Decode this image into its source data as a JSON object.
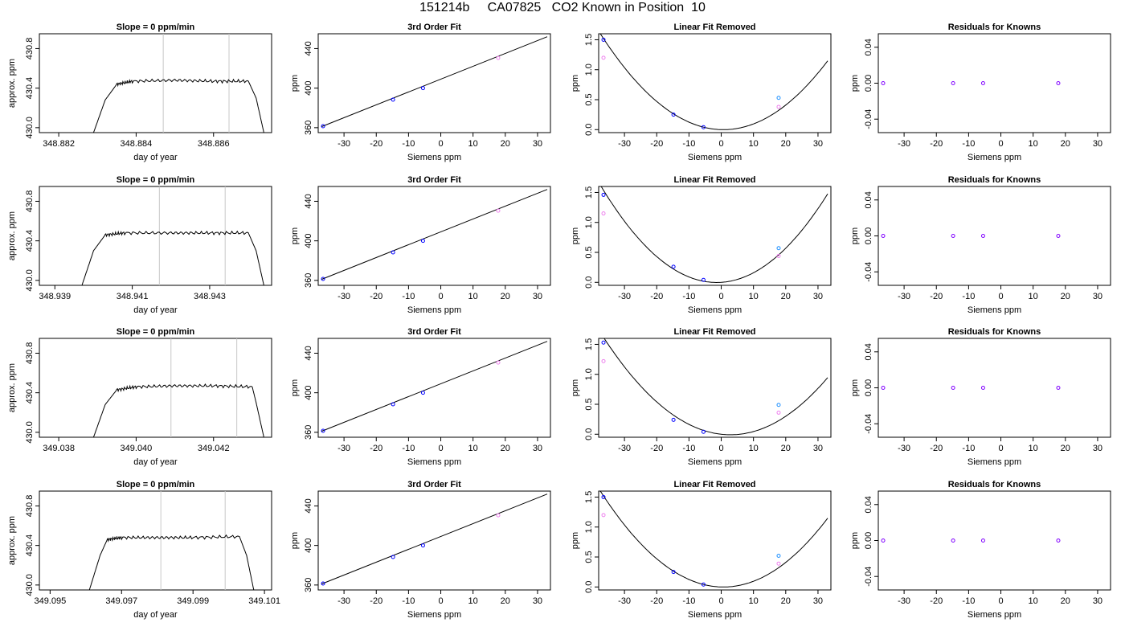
{
  "title": "151214b     CA07825   CO2 Known in Position  10",
  "colors": {
    "trace": "#000000",
    "window_line": "#c8c8c8",
    "points_a": "#0000ff",
    "points_b": "#ee82ee",
    "points_c": "#1e90ff",
    "points_d": "#8000ff",
    "fit": "#000000"
  },
  "chart_data": [
    {
      "type": "line",
      "title": "Slope =  0  ppm/min",
      "xlabel": "day of year",
      "ylabel": "approx. ppm",
      "xlim": [
        348.8815,
        348.8875
      ],
      "ylim": [
        429.95,
        430.95
      ],
      "xticks": [
        "348.882",
        "348.884",
        "348.886"
      ],
      "yticks": [
        "430.0",
        "430.4",
        "430.8"
      ],
      "windows": [
        348.8847,
        348.8864
      ],
      "series": [
        {
          "x": [
            348.8829,
            348.8832,
            348.8835,
            348.8839,
            348.885,
            348.886,
            348.8869,
            348.8871,
            348.8873
          ],
          "y": [
            429.95,
            430.28,
            430.44,
            430.47,
            430.48,
            430.47,
            430.47,
            430.3,
            429.95
          ]
        }
      ]
    },
    {
      "type": "scatter",
      "title": "3rd Order Fit",
      "xlabel": "Siemens ppm",
      "ylabel": "ppm",
      "xlim": [
        -38,
        34
      ],
      "ylim": [
        355,
        455
      ],
      "xticks": [
        "-30",
        "-20",
        "-10",
        "0",
        "10",
        "20",
        "30"
      ],
      "yticks": [
        "360",
        "400",
        "440"
      ],
      "fit": [
        [
          -37,
          361
        ],
        [
          33,
          452
        ]
      ],
      "points": [
        {
          "x": -36.5,
          "y": 361.5
        },
        {
          "x": -14.8,
          "y": 388.3
        },
        {
          "x": -5.5,
          "y": 400
        },
        {
          "x": 17.8,
          "y": 430.5
        }
      ]
    },
    {
      "type": "scatter",
      "title": "Linear Fit Removed",
      "xlabel": "Siemens ppm",
      "ylabel": "ppm",
      "xlim": [
        -38,
        34
      ],
      "ylim": [
        -0.05,
        1.6
      ],
      "xticks": [
        "-30",
        "-20",
        "-10",
        "0",
        "10",
        "20",
        "30"
      ],
      "yticks": [
        "0.0",
        "0.5",
        "1.0",
        "1.5"
      ],
      "curve": {
        "a": 0.0011,
        "b": -0.0015,
        "c": 0.0
      },
      "points": [
        {
          "x": -36.5,
          "y": 1.5
        },
        {
          "x": -36.5,
          "y": 1.2
        },
        {
          "x": -14.8,
          "y": 0.25
        },
        {
          "x": -5.5,
          "y": 0.04
        },
        {
          "x": 17.8,
          "y": 0.53
        },
        {
          "x": 17.8,
          "y": 0.38
        }
      ]
    },
    {
      "type": "scatter",
      "title": "Residuals for Knowns",
      "xlabel": "Siemens ppm",
      "ylabel": "ppm",
      "xlim": [
        -38,
        34
      ],
      "ylim": [
        -0.055,
        0.055
      ],
      "xticks": [
        "-30",
        "-20",
        "-10",
        "0",
        "10",
        "20",
        "30"
      ],
      "yticks": [
        "-0.04",
        "0.00",
        "0.04"
      ],
      "points": [
        {
          "x": -36.5,
          "y": 0
        },
        {
          "x": -14.8,
          "y": 0
        },
        {
          "x": -5.5,
          "y": 0
        },
        {
          "x": 17.8,
          "y": 0
        }
      ]
    },
    {
      "type": "line",
      "title": "Slope =  0  ppm/min",
      "xlabel": "day of year",
      "ylabel": "approx. ppm",
      "xlim": [
        348.9386,
        348.9446
      ],
      "ylim": [
        429.95,
        430.95
      ],
      "xticks": [
        "348.939",
        "348.941",
        "348.943"
      ],
      "yticks": [
        "430.0",
        "430.4",
        "430.8"
      ],
      "windows": [
        348.9417,
        348.9434
      ],
      "series": [
        {
          "x": [
            348.9397,
            348.94,
            348.9403,
            348.9408,
            348.942,
            348.943,
            348.944,
            348.9442,
            348.9444
          ],
          "y": [
            429.95,
            430.3,
            430.46,
            430.48,
            430.48,
            430.48,
            430.48,
            430.3,
            429.95
          ]
        }
      ]
    },
    {
      "type": "scatter",
      "title": "3rd Order Fit",
      "xlabel": "Siemens ppm",
      "ylabel": "ppm",
      "xlim": [
        -38,
        34
      ],
      "ylim": [
        355,
        455
      ],
      "xticks": [
        "-30",
        "-20",
        "-10",
        "0",
        "10",
        "20",
        "30"
      ],
      "yticks": [
        "360",
        "400",
        "440"
      ],
      "fit": [
        [
          -37,
          361
        ],
        [
          33,
          452
        ]
      ],
      "points": [
        {
          "x": -36.5,
          "y": 361.5
        },
        {
          "x": -14.8,
          "y": 388.3
        },
        {
          "x": -5.5,
          "y": 400
        },
        {
          "x": 17.8,
          "y": 430.5
        }
      ]
    },
    {
      "type": "scatter",
      "title": "Linear Fit Removed",
      "xlabel": "Siemens ppm",
      "ylabel": "ppm",
      "xlim": [
        -38,
        34
      ],
      "ylim": [
        -0.05,
        1.6
      ],
      "xticks": [
        "-30",
        "-20",
        "-10",
        "0",
        "10",
        "20",
        "30"
      ],
      "yticks": [
        "0.0",
        "0.5",
        "1.0",
        "1.5"
      ],
      "curve": {
        "a": 0.00125,
        "b": 0.0035,
        "c": 0.0
      },
      "points": [
        {
          "x": -36.5,
          "y": 1.46
        },
        {
          "x": -36.5,
          "y": 1.15
        },
        {
          "x": -14.8,
          "y": 0.26
        },
        {
          "x": -5.5,
          "y": 0.04
        },
        {
          "x": 17.8,
          "y": 0.57
        },
        {
          "x": 17.8,
          "y": 0.44
        }
      ]
    },
    {
      "type": "scatter",
      "title": "Residuals for Knowns",
      "xlabel": "Siemens ppm",
      "ylabel": "ppm",
      "xlim": [
        -38,
        34
      ],
      "ylim": [
        -0.055,
        0.055
      ],
      "xticks": [
        "-30",
        "-20",
        "-10",
        "0",
        "10",
        "20",
        "30"
      ],
      "yticks": [
        "-0.04",
        "0.00",
        "0.04"
      ],
      "points": [
        {
          "x": -36.5,
          "y": 0
        },
        {
          "x": -14.8,
          "y": 0
        },
        {
          "x": -5.5,
          "y": 0
        },
        {
          "x": 17.8,
          "y": 0
        }
      ]
    },
    {
      "type": "line",
      "title": "Slope =  0  ppm/min",
      "xlabel": "day of year",
      "ylabel": "approx. ppm",
      "xlim": [
        349.0375,
        349.0435
      ],
      "ylim": [
        429.95,
        430.95
      ],
      "xticks": [
        "349.038",
        "349.040",
        "349.042"
      ],
      "yticks": [
        "430.0",
        "430.4",
        "430.8"
      ],
      "windows": [
        349.0409,
        349.0426
      ],
      "series": [
        {
          "x": [
            349.0389,
            349.0392,
            349.0395,
            349.04,
            349.041,
            349.042,
            349.043,
            349.0431,
            349.0433
          ],
          "y": [
            429.95,
            430.28,
            430.43,
            430.46,
            430.47,
            430.47,
            430.46,
            430.3,
            429.95
          ]
        }
      ]
    },
    {
      "type": "scatter",
      "title": "3rd Order Fit",
      "xlabel": "Siemens ppm",
      "ylabel": "ppm",
      "xlim": [
        -38,
        34
      ],
      "ylim": [
        355,
        455
      ],
      "xticks": [
        "-30",
        "-20",
        "-10",
        "0",
        "10",
        "20",
        "30"
      ],
      "yticks": [
        "360",
        "400",
        "440"
      ],
      "fit": [
        [
          -37,
          361
        ],
        [
          33,
          452
        ]
      ],
      "points": [
        {
          "x": -36.5,
          "y": 361.5
        },
        {
          "x": -14.8,
          "y": 388.3
        },
        {
          "x": -5.5,
          "y": 400
        },
        {
          "x": 17.8,
          "y": 430.5
        }
      ]
    },
    {
      "type": "scatter",
      "title": "Linear Fit Removed",
      "xlabel": "Siemens ppm",
      "ylabel": "ppm",
      "xlim": [
        -38,
        34
      ],
      "ylim": [
        -0.05,
        1.6
      ],
      "xticks": [
        "-30",
        "-20",
        "-10",
        "0",
        "10",
        "20",
        "30"
      ],
      "yticks": [
        "0.0",
        "0.5",
        "1.0",
        "1.5"
      ],
      "curve": {
        "a": 0.00105,
        "b": -0.006,
        "c": 0.0
      },
      "points": [
        {
          "x": -36.5,
          "y": 1.53
        },
        {
          "x": -36.5,
          "y": 1.22
        },
        {
          "x": -14.8,
          "y": 0.24
        },
        {
          "x": -5.5,
          "y": 0.04
        },
        {
          "x": 17.8,
          "y": 0.49
        },
        {
          "x": 17.8,
          "y": 0.36
        }
      ]
    },
    {
      "type": "scatter",
      "title": "Residuals for Knowns",
      "xlabel": "Siemens ppm",
      "ylabel": "ppm",
      "xlim": [
        -38,
        34
      ],
      "ylim": [
        -0.055,
        0.055
      ],
      "xticks": [
        "-30",
        "-20",
        "-10",
        "0",
        "10",
        "20",
        "30"
      ],
      "yticks": [
        "-0.04",
        "0.00",
        "0.04"
      ],
      "points": [
        {
          "x": -36.5,
          "y": 0
        },
        {
          "x": -14.8,
          "y": 0
        },
        {
          "x": -5.5,
          "y": 0
        },
        {
          "x": 17.8,
          "y": 0
        }
      ]
    },
    {
      "type": "line",
      "title": "Slope =  0  ppm/min",
      "xlabel": "day of year",
      "ylabel": "approx. ppm",
      "xlim": [
        349.0947,
        349.1012
      ],
      "ylim": [
        429.95,
        430.95
      ],
      "xticks": [
        "349.095",
        "349.097",
        "349.099",
        "349.101"
      ],
      "yticks": [
        "430.0",
        "430.4",
        "430.8"
      ],
      "windows": [
        349.0981,
        349.0999
      ],
      "series": [
        {
          "x": [
            349.0961,
            349.0964,
            349.0966,
            349.097,
            349.098,
            349.099,
            349.1003,
            349.1005,
            349.1007
          ],
          "y": [
            429.95,
            430.3,
            430.46,
            430.48,
            430.48,
            430.48,
            430.49,
            430.3,
            429.95
          ]
        }
      ]
    },
    {
      "type": "scatter",
      "title": "3rd Order Fit",
      "xlabel": "Siemens ppm",
      "ylabel": "ppm",
      "xlim": [
        -38,
        34
      ],
      "ylim": [
        355,
        455
      ],
      "xticks": [
        "-30",
        "-20",
        "-10",
        "0",
        "10",
        "20",
        "30"
      ],
      "yticks": [
        "360",
        "400",
        "440"
      ],
      "fit": [
        [
          -37,
          361
        ],
        [
          33,
          452
        ]
      ],
      "points": [
        {
          "x": -36.5,
          "y": 361.5
        },
        {
          "x": -14.8,
          "y": 388.3
        },
        {
          "x": -5.5,
          "y": 400
        },
        {
          "x": 17.8,
          "y": 430.5
        }
      ]
    },
    {
      "type": "scatter",
      "title": "Linear Fit Removed",
      "xlabel": "Siemens ppm",
      "ylabel": "ppm",
      "xlim": [
        -38,
        34
      ],
      "ylim": [
        -0.05,
        1.6
      ],
      "xticks": [
        "-30",
        "-20",
        "-10",
        "0",
        "10",
        "20",
        "30"
      ],
      "yticks": [
        "0.0",
        "0.5",
        "1.0",
        "1.5"
      ],
      "curve": {
        "a": 0.0011,
        "b": -0.0015,
        "c": 0.0
      },
      "points": [
        {
          "x": -36.5,
          "y": 1.5
        },
        {
          "x": -36.5,
          "y": 1.2
        },
        {
          "x": -14.8,
          "y": 0.25
        },
        {
          "x": -5.5,
          "y": 0.04
        },
        {
          "x": 17.8,
          "y": 0.52
        },
        {
          "x": 17.8,
          "y": 0.39
        }
      ]
    },
    {
      "type": "scatter",
      "title": "Residuals for Knowns",
      "xlabel": "Siemens ppm",
      "ylabel": "ppm",
      "xlim": [
        -38,
        34
      ],
      "ylim": [
        -0.055,
        0.055
      ],
      "xticks": [
        "-30",
        "-20",
        "-10",
        "0",
        "10",
        "20",
        "30"
      ],
      "yticks": [
        "-0.04",
        "0.00",
        "0.04"
      ],
      "points": [
        {
          "x": -36.5,
          "y": 0
        },
        {
          "x": -14.8,
          "y": 0
        },
        {
          "x": -5.5,
          "y": 0
        },
        {
          "x": 17.8,
          "y": 0
        }
      ]
    }
  ]
}
